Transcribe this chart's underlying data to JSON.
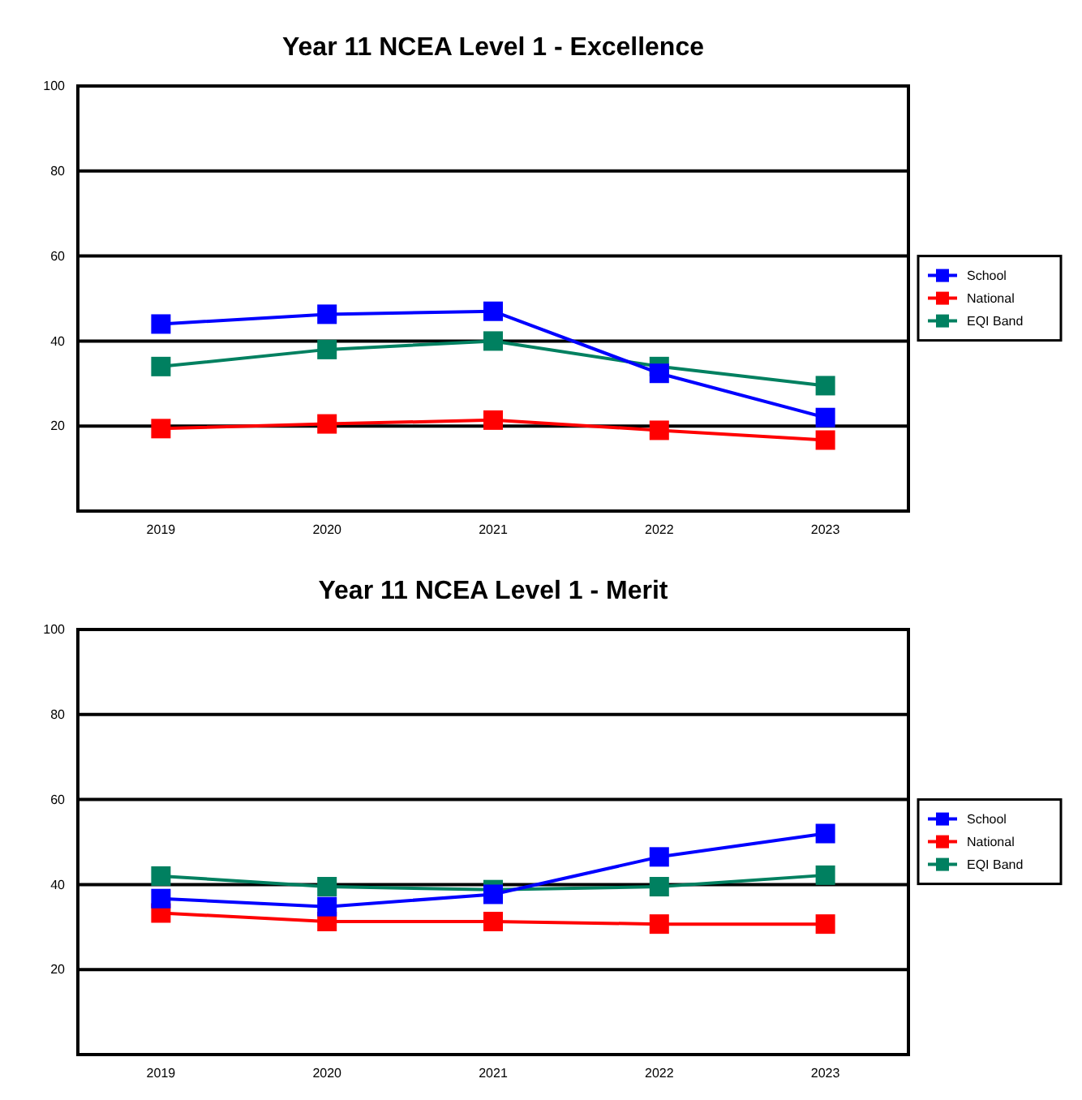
{
  "chart_data": [
    {
      "type": "line",
      "title": "Year 11 NCEA Level 1 - Excellence",
      "categories": [
        "2019",
        "2020",
        "2021",
        "2022",
        "2023"
      ],
      "ylim": [
        0,
        100
      ],
      "yticks": [
        20,
        40,
        60,
        80,
        100
      ],
      "grid": "y",
      "legend": "right",
      "marker": "square",
      "line_style": "solid",
      "series": [
        {
          "name": "School",
          "color": "#0000ff",
          "values": [
            44,
            46.3,
            47,
            32.4,
            22
          ]
        },
        {
          "name": "National",
          "color": "#ff0000",
          "values": [
            19.4,
            20.5,
            21.4,
            19,
            16.7
          ]
        },
        {
          "name": "EQI Band",
          "color": "#008060",
          "values": [
            34,
            38,
            40,
            34,
            29.5
          ]
        }
      ]
    },
    {
      "type": "line",
      "title": "Year 11 NCEA Level 1 - Merit",
      "categories": [
        "2019",
        "2020",
        "2021",
        "2022",
        "2023"
      ],
      "ylim": [
        0,
        100
      ],
      "yticks": [
        20,
        40,
        60,
        80,
        100
      ],
      "grid": "y",
      "legend": "right",
      "marker": "square",
      "line_style": "solid",
      "series": [
        {
          "name": "School",
          "color": "#0000ff",
          "values": [
            36.7,
            34.8,
            37.7,
            46.5,
            52
          ]
        },
        {
          "name": "National",
          "color": "#ff0000",
          "values": [
            33.3,
            31.3,
            31.3,
            30.7,
            30.7
          ]
        },
        {
          "name": "EQI Band",
          "color": "#008060",
          "values": [
            42,
            39.5,
            38.8,
            39.5,
            42.2
          ]
        }
      ]
    }
  ]
}
